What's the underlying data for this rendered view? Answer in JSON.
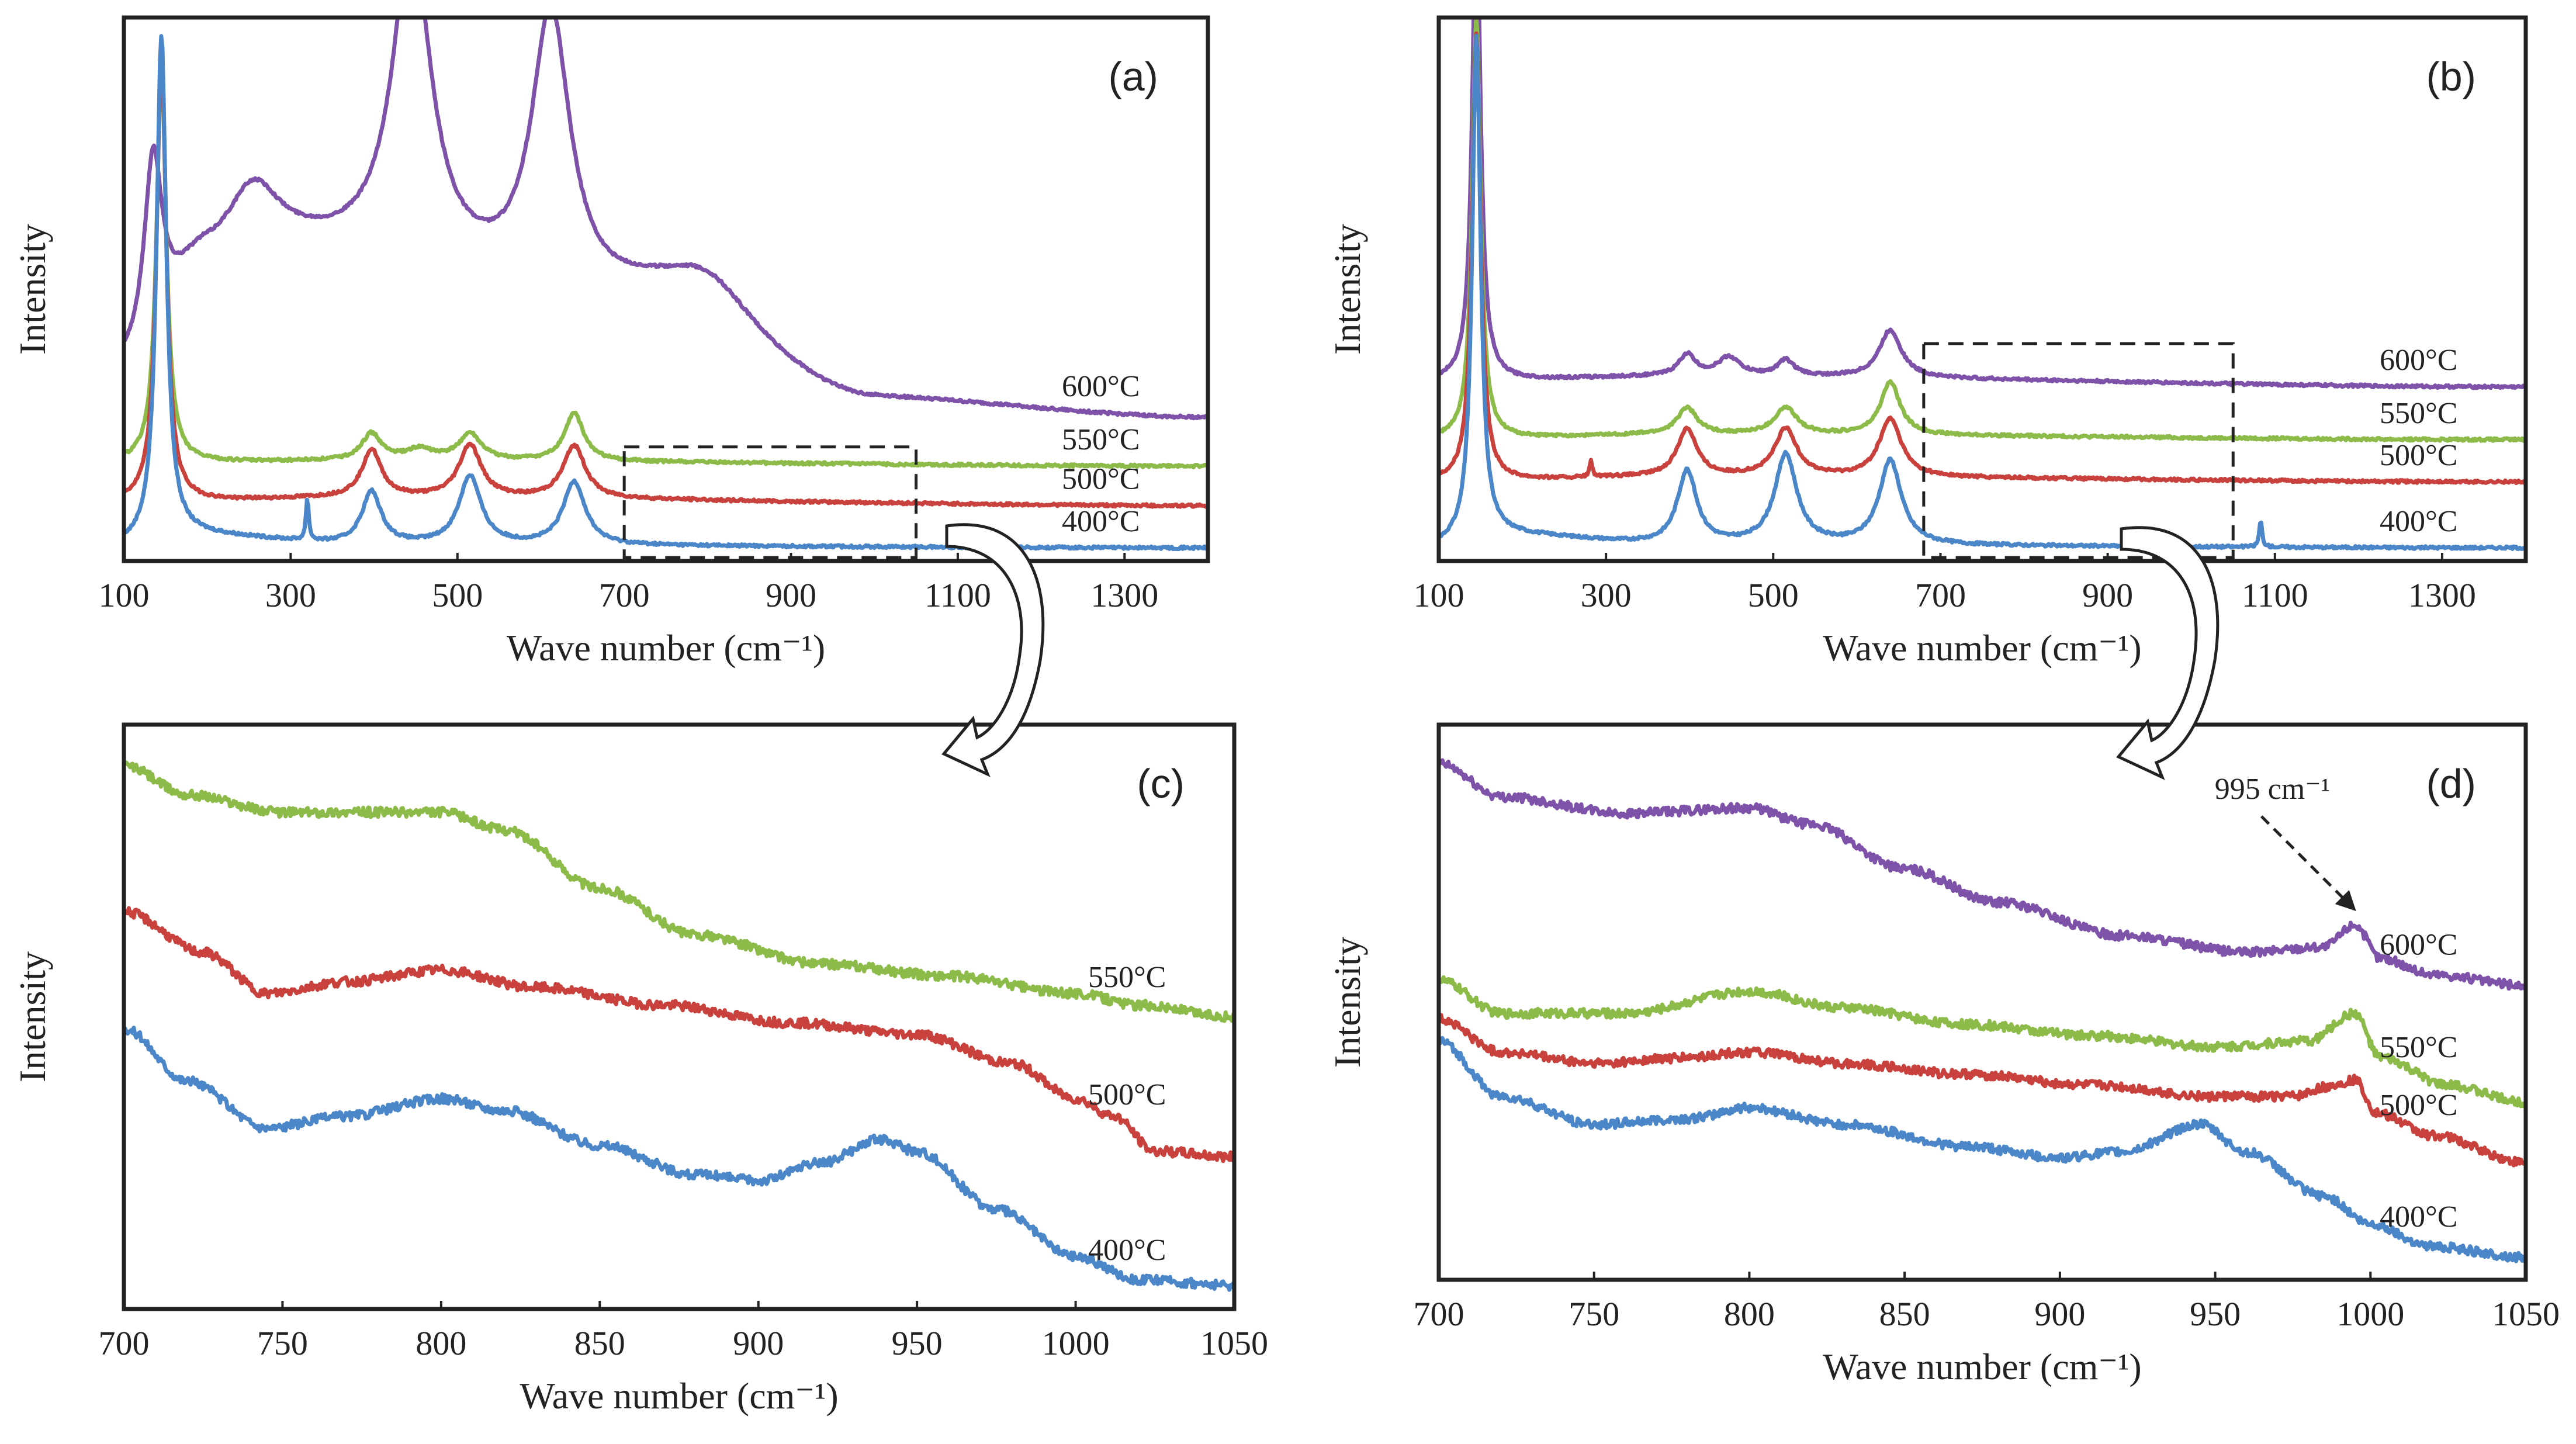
{
  "chart_data": [
    {
      "id": "a",
      "type": "line",
      "panel_label": "(a)",
      "xlabel": "Wave number (cm⁻¹)",
      "ylabel": "Intensity",
      "xlim": [
        100,
        1400
      ],
      "xticks": [
        "100",
        "300",
        "500",
        "700",
        "900",
        "1100",
        "1300"
      ],
      "zoom_region": [
        700,
        1050
      ],
      "series": [
        {
          "name": "400°C",
          "color": "#4a86c8",
          "baseline": 0.0,
          "peaks": [
            [
              145,
              0.95,
              7
            ],
            [
              320,
              0.08,
              2
            ],
            [
              397,
              0.1,
              14
            ],
            [
              515,
              0.13,
              16
            ],
            [
              640,
              0.12,
              16
            ]
          ],
          "background": [
            [
              100,
              0.0
            ],
            [
              160,
              0.02
            ],
            [
              400,
              0.0
            ],
            [
              1400,
              -0.005
            ]
          ]
        },
        {
          "name": "500°C",
          "color": "#c9413c",
          "baseline": 0.08,
          "peaks": [
            [
              145,
              0.85,
              7
            ],
            [
              397,
              0.09,
              14
            ],
            [
              515,
              0.1,
              16
            ],
            [
              640,
              0.1,
              16
            ]
          ],
          "background": [
            [
              100,
              0.08
            ],
            [
              400,
              0.09
            ],
            [
              1400,
              0.075
            ]
          ]
        },
        {
          "name": "550°C",
          "color": "#8dbb49",
          "baseline": 0.155,
          "peaks": [
            [
              145,
              0.75,
              7
            ],
            [
              397,
              0.05,
              14
            ],
            [
              455,
              0.02,
              20
            ],
            [
              515,
              0.05,
              16
            ],
            [
              640,
              0.09,
              14
            ]
          ],
          "background": [
            [
              100,
              0.155
            ],
            [
              400,
              0.16
            ],
            [
              1400,
              0.15
            ]
          ]
        },
        {
          "name": "600°C",
          "color": "#7d52a8",
          "baseline": 0.24,
          "peaks": [
            [
              135,
              0.35,
              13
            ],
            [
              255,
              0.14,
              40
            ],
            [
              445,
              0.6,
              28
            ],
            [
              612,
              0.53,
              28
            ],
            [
              800,
              0.1,
              70
            ]
          ],
          "background": [
            [
              100,
              0.33
            ],
            [
              200,
              0.52
            ],
            [
              330,
              0.55
            ],
            [
              700,
              0.45
            ],
            [
              1000,
              0.27
            ],
            [
              1400,
              0.24
            ]
          ]
        }
      ]
    },
    {
      "id": "b",
      "type": "line",
      "panel_label": "(b)",
      "xlabel": "Wave number (cm⁻¹)",
      "ylabel": "Intensity",
      "xlim": [
        100,
        1400
      ],
      "xticks": [
        "100",
        "300",
        "500",
        "700",
        "900",
        "1100",
        "1300"
      ],
      "zoom_region": [
        680,
        1050
      ],
      "series": [
        {
          "name": "400°C",
          "color": "#4a86c8",
          "baseline": 0.0,
          "peaks": [
            [
              145,
              0.95,
              6
            ],
            [
              397,
              0.14,
              14
            ],
            [
              515,
              0.17,
              16
            ],
            [
              640,
              0.16,
              16
            ],
            [
              1083,
              0.05,
              2
            ]
          ],
          "background": [
            [
              100,
              0.0
            ],
            [
              160,
              0.02
            ],
            [
              400,
              0.0
            ],
            [
              1400,
              -0.005
            ]
          ]
        },
        {
          "name": "500°C",
          "color": "#c9413c",
          "baseline": 0.12,
          "peaks": [
            [
              145,
              0.85,
              6
            ],
            [
              282,
              0.03,
              2
            ],
            [
              397,
              0.09,
              14
            ],
            [
              515,
              0.09,
              16
            ],
            [
              640,
              0.11,
              16
            ]
          ],
          "background": [
            [
              100,
              0.12
            ],
            [
              400,
              0.13
            ],
            [
              1400,
              0.12
            ]
          ]
        },
        {
          "name": "550°C",
          "color": "#8dbb49",
          "baseline": 0.2,
          "peaks": [
            [
              145,
              0.8,
              6
            ],
            [
              397,
              0.05,
              14
            ],
            [
              515,
              0.05,
              16
            ],
            [
              640,
              0.1,
              14
            ]
          ],
          "background": [
            [
              100,
              0.2
            ],
            [
              400,
              0.21
            ],
            [
              1400,
              0.2
            ]
          ]
        },
        {
          "name": "600°C",
          "color": "#7d52a8",
          "baseline": 0.3,
          "peaks": [
            [
              145,
              0.9,
              6
            ],
            [
              397,
              0.04,
              12
            ],
            [
              447,
              0.035,
              16
            ],
            [
              515,
              0.03,
              12
            ],
            [
              640,
              0.09,
              16
            ]
          ],
          "background": [
            [
              100,
              0.31
            ],
            [
              400,
              0.32
            ],
            [
              1400,
              0.3
            ]
          ]
        }
      ]
    },
    {
      "id": "c",
      "type": "line",
      "panel_label": "(c)",
      "xlabel": "Wave number (cm⁻¹)",
      "ylabel": "Intensity",
      "xlim": [
        700,
        1050
      ],
      "xticks": [
        "700",
        "750",
        "800",
        "850",
        "900",
        "950",
        "1000",
        "1050"
      ],
      "series": [
        {
          "name": "400°C",
          "color": "#4a86c8",
          "points": [
            [
              700,
              0.48
            ],
            [
              720,
              0.39
            ],
            [
              745,
              0.31
            ],
            [
              770,
              0.33
            ],
            [
              800,
              0.36
            ],
            [
              820,
              0.34
            ],
            [
              850,
              0.28
            ],
            [
              880,
              0.23
            ],
            [
              900,
              0.22
            ],
            [
              920,
              0.25
            ],
            [
              938,
              0.29
            ],
            [
              950,
              0.27
            ],
            [
              975,
              0.17
            ],
            [
              1000,
              0.09
            ],
            [
              1020,
              0.05
            ],
            [
              1050,
              0.04
            ]
          ]
        },
        {
          "name": "500°C",
          "color": "#c9413c",
          "points": [
            [
              700,
              0.68
            ],
            [
              725,
              0.61
            ],
            [
              745,
              0.54
            ],
            [
              770,
              0.56
            ],
            [
              800,
              0.58
            ],
            [
              830,
              0.55
            ],
            [
              870,
              0.52
            ],
            [
              910,
              0.49
            ],
            [
              950,
              0.47
            ],
            [
              980,
              0.42
            ],
            [
              1000,
              0.36
            ],
            [
              1012,
              0.33
            ],
            [
              1025,
              0.27
            ],
            [
              1050,
              0.26
            ]
          ]
        },
        {
          "name": "550°C",
          "color": "#8dbb49",
          "points": [
            [
              700,
              0.93
            ],
            [
              720,
              0.88
            ],
            [
              750,
              0.85
            ],
            [
              780,
              0.85
            ],
            [
              800,
              0.85
            ],
            [
              820,
              0.82
            ],
            [
              850,
              0.72
            ],
            [
              880,
              0.64
            ],
            [
              920,
              0.59
            ],
            [
              960,
              0.57
            ],
            [
              1000,
              0.54
            ],
            [
              1020,
              0.52
            ],
            [
              1050,
              0.5
            ]
          ]
        }
      ]
    },
    {
      "id": "d",
      "type": "line",
      "panel_label": "(d)",
      "xlabel": "Wave number (cm⁻¹)",
      "ylabel": "Intensity",
      "xlim": [
        700,
        1050
      ],
      "xticks": [
        "700",
        "750",
        "800",
        "850",
        "900",
        "950",
        "1000",
        "1050"
      ],
      "annotation": {
        "text": "995 cm⁻¹",
        "x": 995,
        "series": "600°C"
      },
      "series": [
        {
          "name": "400°C",
          "color": "#4a86c8",
          "points": [
            [
              700,
              0.43
            ],
            [
              720,
              0.33
            ],
            [
              750,
              0.28
            ],
            [
              780,
              0.29
            ],
            [
              800,
              0.31
            ],
            [
              830,
              0.28
            ],
            [
              870,
              0.24
            ],
            [
              900,
              0.22
            ],
            [
              920,
              0.23
            ],
            [
              945,
              0.28
            ],
            [
              960,
              0.23
            ],
            [
              985,
              0.15
            ],
            [
              1000,
              0.1
            ],
            [
              1020,
              0.06
            ],
            [
              1050,
              0.04
            ]
          ]
        },
        {
          "name": "500°C",
          "color": "#c9413c",
          "points": [
            [
              700,
              0.47
            ],
            [
              720,
              0.41
            ],
            [
              750,
              0.39
            ],
            [
              780,
              0.4
            ],
            [
              800,
              0.41
            ],
            [
              830,
              0.39
            ],
            [
              870,
              0.37
            ],
            [
              910,
              0.35
            ],
            [
              950,
              0.33
            ],
            [
              975,
              0.33
            ],
            [
              988,
              0.35
            ],
            [
              995,
              0.36
            ],
            [
              1002,
              0.3
            ],
            [
              1020,
              0.26
            ],
            [
              1050,
              0.21
            ]
          ]
        },
        {
          "name": "550°C",
          "color": "#8dbb49",
          "points": [
            [
              700,
              0.54
            ],
            [
              720,
              0.48
            ],
            [
              760,
              0.48
            ],
            [
              800,
              0.52
            ],
            [
              830,
              0.49
            ],
            [
              870,
              0.46
            ],
            [
              910,
              0.44
            ],
            [
              950,
              0.42
            ],
            [
              980,
              0.43
            ],
            [
              995,
              0.48
            ],
            [
              1003,
              0.4
            ],
            [
              1025,
              0.35
            ],
            [
              1050,
              0.32
            ]
          ]
        },
        {
          "name": "600°C",
          "color": "#7d52a8",
          "points": [
            [
              700,
              0.93
            ],
            [
              720,
              0.87
            ],
            [
              760,
              0.84
            ],
            [
              800,
              0.85
            ],
            [
              820,
              0.82
            ],
            [
              850,
              0.74
            ],
            [
              880,
              0.68
            ],
            [
              920,
              0.62
            ],
            [
              960,
              0.59
            ],
            [
              985,
              0.6
            ],
            [
              995,
              0.64
            ],
            [
              1003,
              0.58
            ],
            [
              1020,
              0.55
            ],
            [
              1050,
              0.53
            ]
          ]
        }
      ]
    }
  ]
}
